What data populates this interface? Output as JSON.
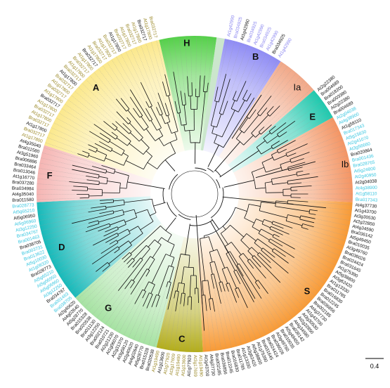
{
  "figure": {
    "type": "circular phylogenetic tree",
    "scale_bar": {
      "label": "0.4"
    },
    "clades": [
      {
        "name": "H",
        "color": "#55d04a",
        "label_style": "bold"
      },
      {
        "name": "B",
        "color": "#8f8cf4",
        "label_style": "bold"
      },
      {
        "name": "Ia",
        "color": "#f1a888",
        "label_style": "normal"
      },
      {
        "name": "E",
        "color": "#1fc8ad",
        "label_style": "bold"
      },
      {
        "name": "Ib",
        "color": "#f39564",
        "label_style": "normal"
      },
      {
        "name": "S",
        "color": "#f79a36",
        "label_style": "bold"
      },
      {
        "name": "C",
        "color": "#b3ad1c",
        "label_style": "bold"
      },
      {
        "name": "G",
        "color": "#a6e2a2",
        "label_style": "bold"
      },
      {
        "name": "D",
        "color": "#17b9b9",
        "label_style": "bold"
      },
      {
        "name": "F",
        "color": "#f5b5b3",
        "label_style": "bold"
      },
      {
        "name": "A",
        "color": "#fbe88c",
        "label_style": "bold"
      }
    ],
    "leaf_colors": {
      "arabidopsis": "#111111",
      "brassica_gold": "#9c8a2a",
      "brassica_cyan": "#38c6e0",
      "brassica_violet": "#8c88f0",
      "brassica_red": "#e0283a"
    },
    "readable_leaves": {
      "A": [
        "At1g17800",
        "Bra032717"
      ],
      "B": [
        "At1g42990",
        "Bra034925"
      ],
      "E": [
        "At2g22380",
        "Bra004689",
        "Bra018200",
        "Bra003380"
      ],
      "F": [
        "Bra011580",
        "At4g35040",
        "Bra034984",
        "Bra037280",
        "At1g16770",
        "Bra013046",
        "Bra033464",
        "Bra006886",
        "At3g51960"
      ],
      "D": [
        "Bra038705",
        "Bra001463",
        "Bra034767",
        "At3g12250",
        "At5g06960",
        "At5g06950",
        "At5g65210",
        "Bra028773",
        "At1g08320",
        "At5g10030",
        "Bra013622",
        "Bra003731"
      ],
      "S": [
        "At4g37730",
        "At1g43700",
        "At3g30530",
        "At2g22850",
        "At4g34590",
        "Bra036142",
        "At5g49450",
        "Bra010035",
        "At3g49760",
        "Bra036026",
        "Bra024424",
        "Bra031645",
        "At1g75390",
        "At5g38800",
        "At3g62420",
        "At1g13330",
        "Bra011785",
        "Bra016830",
        "Bra012245",
        "Bra036856",
        "Bra002185"
      ],
      "C": [
        "At1g19490",
        "At3g17609",
        "At1g77920",
        "At1g13600"
      ],
      "G": [
        "Bra020538",
        "Bra015328",
        "At5g28770",
        "At4g02640",
        "At2g40620",
        "At3g58120",
        "At2g31370",
        "At1g06070",
        "At2g21230",
        "Bra010721",
        "Bra002124",
        "At3g12250",
        "Bra011130"
      ],
      "Ib": [
        "At2g04038",
        "At4g38900",
        "At1g58110",
        "Bra017343",
        "At5g15830",
        "At2g41070",
        "At3g56660",
        "Bra020864",
        "Bra001436",
        "Bra028765",
        "At5g24800",
        "At2g40950"
      ]
    }
  }
}
